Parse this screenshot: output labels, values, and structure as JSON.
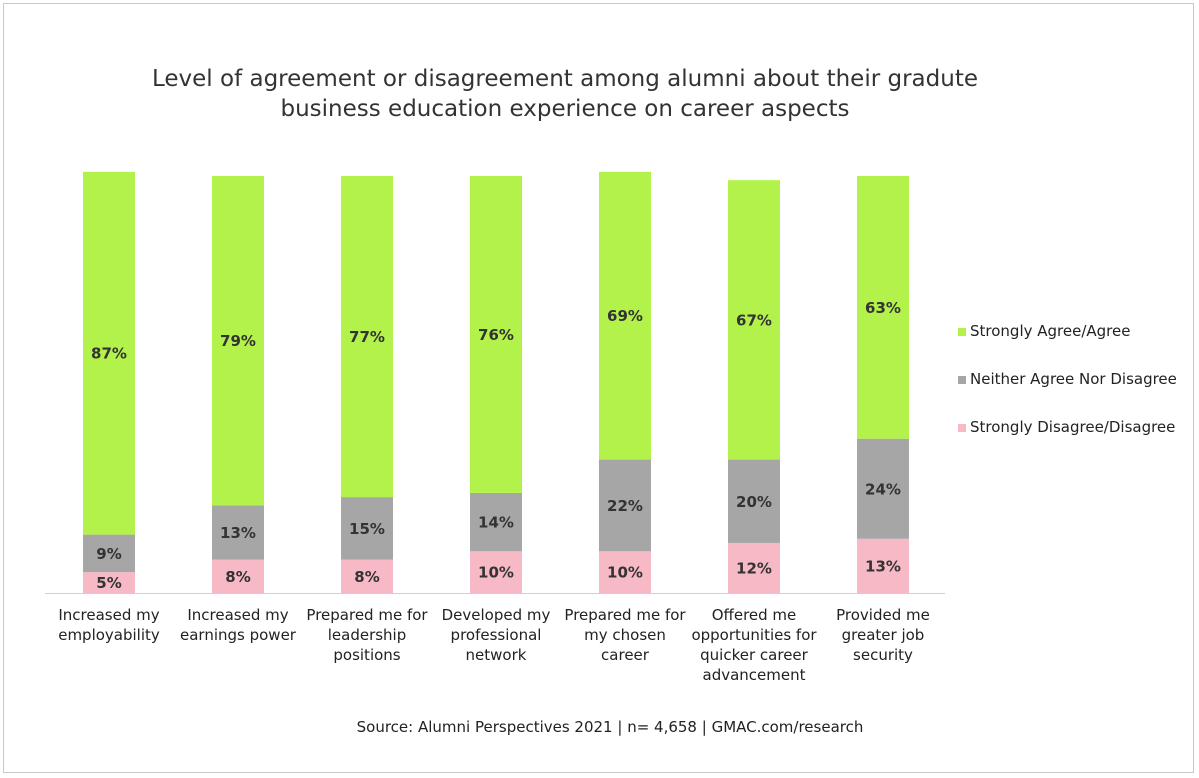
{
  "chart_data": {
    "type": "bar",
    "stacked": true,
    "title": "Level of agreement or disagreement among alumni about their gradute business education experience on career aspects",
    "source": "Source: Alumni Perspectives 2021 | n= 4,658 | GMAC.com/research",
    "categories": [
      "Increased my employability",
      "Increased my earnings power",
      "Prepared me for leadership positions",
      "Developed my professional network",
      "Prepared me for my chosen career",
      "Offered me opportunities for quicker career advancement",
      "Provided me greater job security"
    ],
    "ylim": [
      0,
      100
    ],
    "legend": "right",
    "series": [
      {
        "name": "Strongly Agree/Agree",
        "color": "#b3f24a",
        "values": [
          87,
          79,
          77,
          76,
          69,
          67,
          63
        ],
        "value_labels": [
          "87%",
          "79%",
          "77%",
          "76%",
          "69%",
          "67%",
          "63%"
        ]
      },
      {
        "name": "Neither Agree Nor Disagree",
        "color": "#a6a6a6",
        "values": [
          9,
          13,
          15,
          14,
          22,
          20,
          24
        ],
        "value_labels": [
          "9%",
          "13%",
          "15%",
          "14%",
          "22%",
          "20%",
          "24%"
        ]
      },
      {
        "name": "Strongly Disagree/Disagree",
        "color": "#f6b9c5",
        "values": [
          5,
          8,
          8,
          10,
          10,
          12,
          13
        ],
        "value_labels": [
          "5%",
          "8%",
          "8%",
          "10%",
          "10%",
          "12%",
          "13%"
        ]
      }
    ]
  }
}
